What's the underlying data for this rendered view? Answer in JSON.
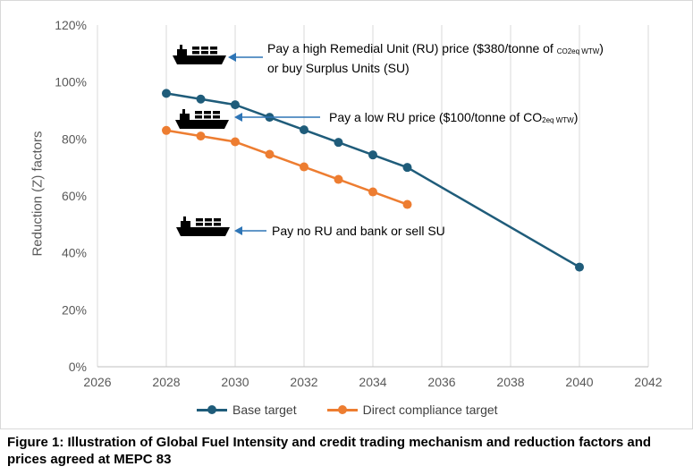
{
  "chart_data": {
    "type": "line",
    "title": "",
    "xlabel": "",
    "ylabel": "Reduction (Z) factors",
    "xlim": [
      2026,
      2042
    ],
    "ylim": [
      0,
      120
    ],
    "x_ticks": [
      "2026",
      "2028",
      "2030",
      "2032",
      "2034",
      "2036",
      "2038",
      "2040",
      "2042"
    ],
    "y_ticks": [
      "0%",
      "20%",
      "40%",
      "60%",
      "80%",
      "100%",
      "120%"
    ],
    "grid": "vertical",
    "legend": "bottom",
    "series": [
      {
        "name": "Base target",
        "color": "#1f5c7a",
        "x": [
          2028,
          2029,
          2030,
          2031,
          2032,
          2033,
          2034,
          2035,
          2040
        ],
        "y": [
          96,
          94,
          92,
          87.6,
          83.2,
          78.8,
          74.4,
          70,
          35
        ]
      },
      {
        "name": "Direct compliance target",
        "color": "#ed7d31",
        "x": [
          2028,
          2029,
          2030,
          2031,
          2032,
          2033,
          2034,
          2035
        ],
        "y": [
          83,
          81,
          79,
          74.6,
          70.2,
          65.8,
          61.4,
          57
        ]
      }
    ],
    "annotations": [
      {
        "line1_pre": "Pay a high Remedial Unit (RU) price ($380/tonne of ",
        "line1_sub": "CO2eq WTW",
        "line1_post": ")",
        "line2": "or buy Surplus Units (SU)",
        "icon": "ship-icon"
      },
      {
        "pre": "Pay a low RU price ($100/tonne of CO",
        "sub": "2eq WTW",
        "post": ")",
        "icon": "ship-icon"
      },
      {
        "text": "Pay no RU and bank or sell SU",
        "icon": "ship-icon"
      }
    ]
  },
  "caption": "Figure 1: Illustration of Global Fuel Intensity and credit trading mechanism and reduction factors and prices agreed at MEPC 83",
  "colors": {
    "arrow": "#2e75b6",
    "grid": "#d9d9d9",
    "axis_text": "#595959"
  }
}
